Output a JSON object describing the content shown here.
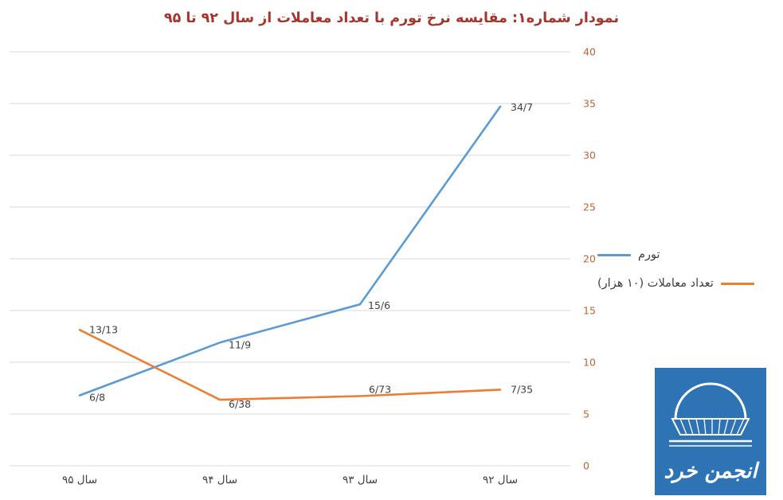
{
  "title": "نمودار شماره۱: مقایسه نرخ  تورم با تعداد معاملات از سال ۹۲ تا ۹۵",
  "colors": {
    "title": "#A5362E",
    "grid": "#D9D9D9",
    "y_tick": "#BF6430",
    "x_tick": "#404040",
    "data_label": "#404040",
    "series_inflation": "#5B9BD5",
    "series_transactions": "#ED7D31",
    "logo_bg": "#2E74B5"
  },
  "chart_data": {
    "type": "line",
    "categories": [
      "سال ۹۵",
      "سال ۹۴",
      "سال ۹۳",
      "سال ۹۲"
    ],
    "series": [
      {
        "name": "تورم",
        "color": "#5B9BD5",
        "values": [
          6.8,
          11.9,
          15.6,
          34.7
        ],
        "point_labels": [
          "6/8",
          "11/9",
          "15/6",
          "34/7"
        ]
      },
      {
        "name": "تعداد معاملات (۱۰ هزار)",
        "color": "#ED7D31",
        "values": [
          13.13,
          6.38,
          6.73,
          7.35
        ],
        "point_labels": [
          "13/13",
          "6/38",
          "6/73",
          "7/35"
        ]
      }
    ],
    "ylim": [
      0,
      40
    ],
    "ytick_step": 5,
    "yticks": [
      "0",
      "5",
      "10",
      "15",
      "20",
      "25",
      "30",
      "35",
      "40"
    ],
    "y_axis_side": "right",
    "grid": true,
    "legend_position": "right"
  },
  "logo": {
    "text": "انجمن خرد"
  }
}
